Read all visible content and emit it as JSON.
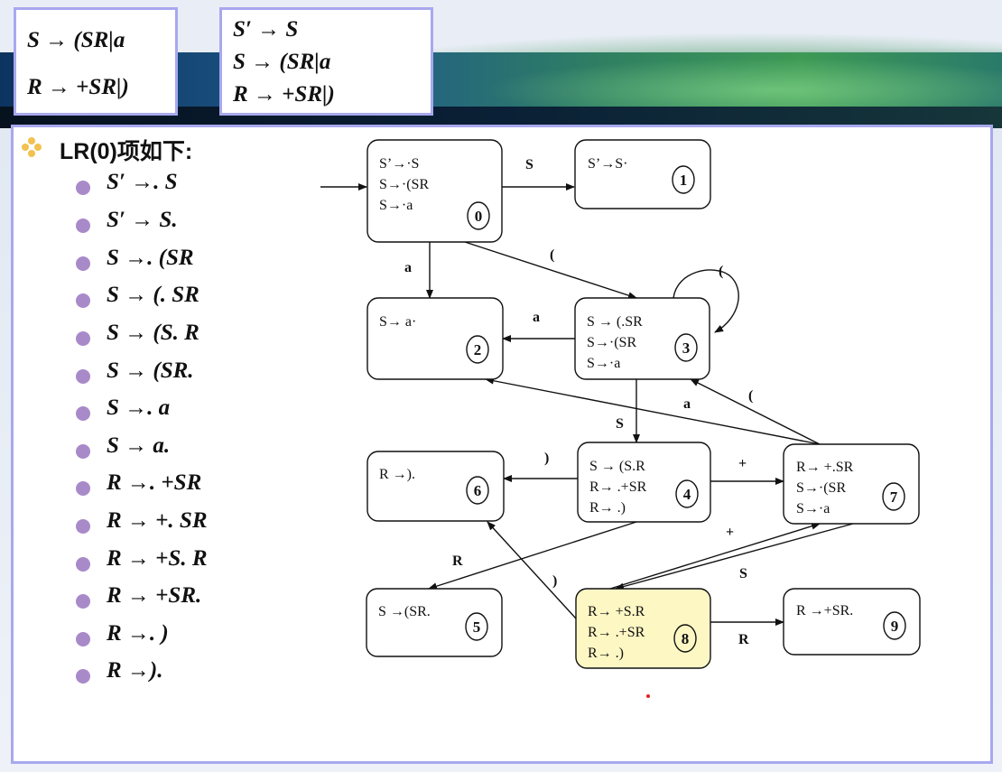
{
  "grammar": {
    "left": [
      "S → (SR|a",
      "R → +SR|)"
    ],
    "right": [
      "S′ → S",
      "S → (SR|a",
      "R → +SR|)"
    ]
  },
  "title": "LR(0)项如下:",
  "items": [
    "S′ →. S",
    "S′ → S.",
    "S →. (SR",
    "S → (. SR",
    "S → (S. R",
    "S → (SR.",
    "S →. a",
    "S → a.",
    "R →. +SR",
    "R → +. SR",
    "R → +S. R",
    "R → +SR.",
    "R →. )",
    "R →)."
  ],
  "diagram": {
    "states": [
      {
        "id": "0",
        "lines": [
          "S’→·S",
          "S→·(SR",
          "S→·a"
        ]
      },
      {
        "id": "1",
        "lines": [
          "S’→S·"
        ]
      },
      {
        "id": "2",
        "lines": [
          "S→ a·"
        ]
      },
      {
        "id": "3",
        "lines": [
          "S → (.SR",
          "S→·(SR",
          "S→·a"
        ]
      },
      {
        "id": "4",
        "lines": [
          "S → (S.R",
          "R→ .+SR",
          "R→ .)"
        ]
      },
      {
        "id": "5",
        "lines": [
          "S →(SR."
        ]
      },
      {
        "id": "6",
        "lines": [
          "R →)."
        ]
      },
      {
        "id": "7",
        "lines": [
          "R→ +.SR",
          "S→·(SR",
          "S→·a"
        ]
      },
      {
        "id": "8",
        "lines": [
          "R→ +S.R",
          "R→ .+SR",
          "R→ .)"
        ],
        "highlight": "#fdf7c4"
      },
      {
        "id": "9",
        "lines": [
          "R →+SR."
        ]
      }
    ],
    "edge_labels": {
      "e01": "S",
      "e02": "a",
      "e03": "(",
      "e33": "(",
      "e32": "a",
      "e34": "S",
      "e73": "(",
      "e72": "a",
      "e46": ")",
      "e47": "+",
      "e45": "R",
      "e86": ")",
      "e78": "S",
      "e87": "+",
      "e89": "R"
    }
  },
  "colors": {
    "box_border": "#a8a8ef",
    "bullet": "#a98ac9",
    "title_bullet": "#f2c14e",
    "highlight": "#fdf7c4",
    "red_dot": "#e02020"
  }
}
